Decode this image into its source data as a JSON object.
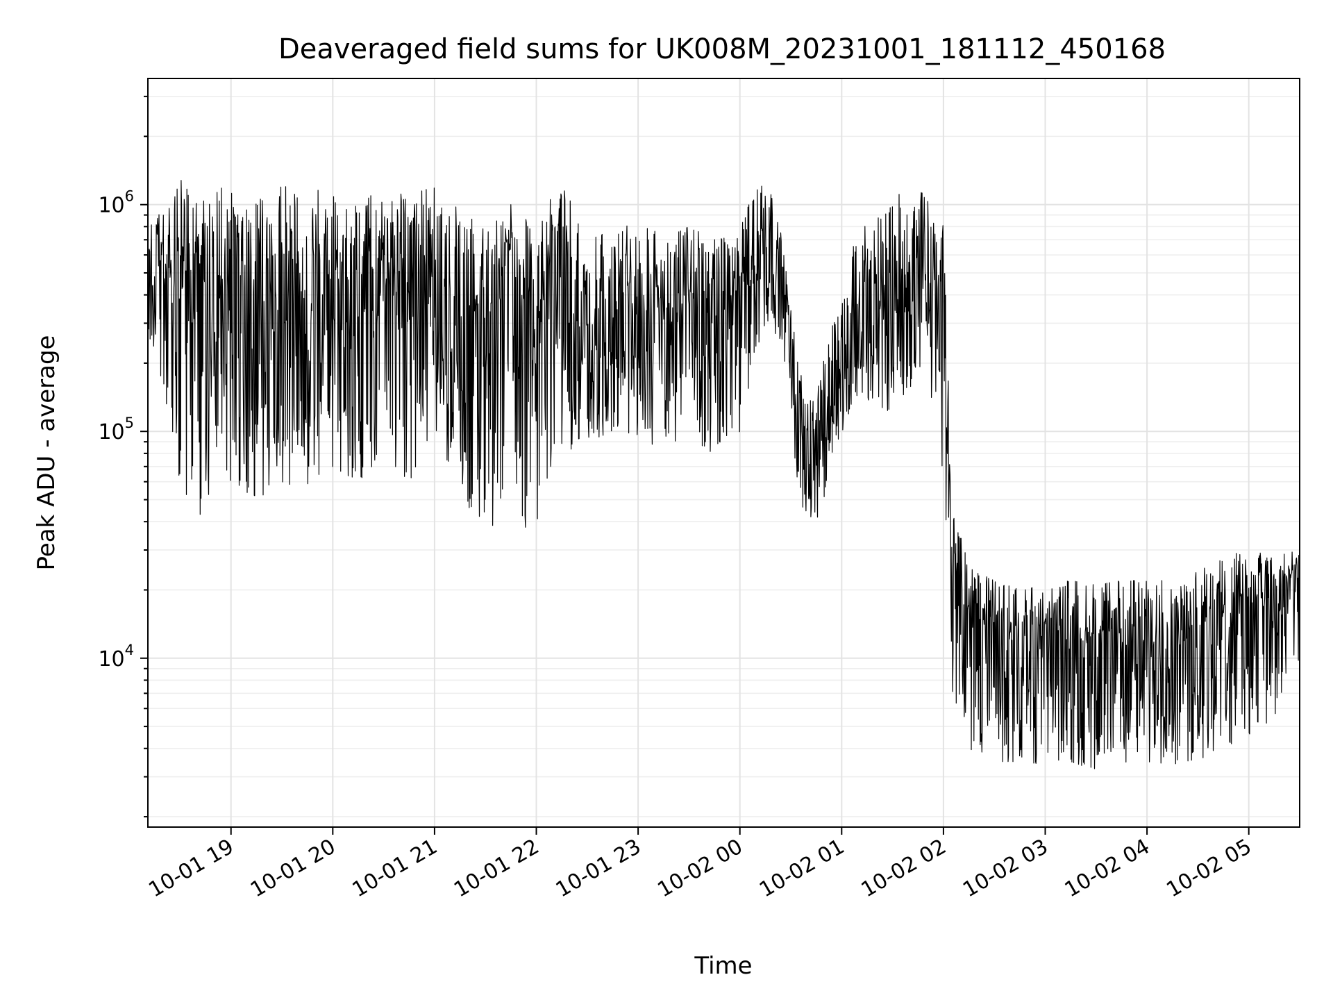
{
  "chart_data": {
    "type": "line",
    "title": "Deaveraged field sums for UK008M_20231001_181112_450168",
    "xlabel": "Time",
    "ylabel": "Peak ADU - average",
    "yscale": "log",
    "ylim": [
      1800,
      3600000
    ],
    "xlim": [
      "2023-10-01 18:11",
      "2023-10-02 05:30"
    ],
    "grid": true,
    "x_ticks": [
      {
        "value": "2023-10-01 19:00",
        "label": "10-01 19"
      },
      {
        "value": "2023-10-01 20:00",
        "label": "10-01 20"
      },
      {
        "value": "2023-10-01 21:00",
        "label": "10-01 21"
      },
      {
        "value": "2023-10-01 22:00",
        "label": "10-01 22"
      },
      {
        "value": "2023-10-01 23:00",
        "label": "10-01 23"
      },
      {
        "value": "2023-10-02 00:00",
        "label": "10-02 00"
      },
      {
        "value": "2023-10-02 01:00",
        "label": "10-02 01"
      },
      {
        "value": "2023-10-02 02:00",
        "label": "10-02 02"
      },
      {
        "value": "2023-10-02 03:00",
        "label": "10-02 03"
      },
      {
        "value": "2023-10-02 04:00",
        "label": "10-02 04"
      },
      {
        "value": "2023-10-02 05:00",
        "label": "10-02 05"
      }
    ],
    "y_ticks": [
      {
        "value": 10000,
        "base": "10",
        "exp": "4"
      },
      {
        "value": 100000,
        "base": "10",
        "exp": "5"
      },
      {
        "value": 1000000,
        "base": "10",
        "exp": "6"
      }
    ],
    "series_color": "#000000",
    "series": [
      {
        "x": [
          "2023-10-01 18:11",
          "2023-10-01 18:20",
          "2023-10-01 18:30",
          "2023-10-01 18:40",
          "2023-10-01 18:50",
          "2023-10-01 19:00",
          "2023-10-01 19:15",
          "2023-10-01 19:30",
          "2023-10-01 19:45",
          "2023-10-01 20:00",
          "2023-10-01 20:15",
          "2023-10-01 20:30",
          "2023-10-01 20:45",
          "2023-10-01 21:00",
          "2023-10-01 21:15",
          "2023-10-01 21:30",
          "2023-10-01 21:45",
          "2023-10-01 22:00",
          "2023-10-01 22:15",
          "2023-10-01 22:30",
          "2023-10-01 22:45",
          "2023-10-01 23:00",
          "2023-10-01 23:15",
          "2023-10-01 23:30",
          "2023-10-01 23:45",
          "2023-10-02 00:00",
          "2023-10-02 00:15",
          "2023-10-02 00:25",
          "2023-10-02 00:35",
          "2023-10-02 00:45",
          "2023-10-02 00:55",
          "2023-10-02 01:10",
          "2023-10-02 01:25",
          "2023-10-02 01:40",
          "2023-10-02 01:50",
          "2023-10-02 02:00",
          "2023-10-02 02:05",
          "2023-10-02 02:15",
          "2023-10-02 02:30",
          "2023-10-02 02:45",
          "2023-10-02 03:00",
          "2023-10-02 03:15",
          "2023-10-02 03:30",
          "2023-10-02 03:45",
          "2023-10-02 04:00",
          "2023-10-02 04:15",
          "2023-10-02 04:30",
          "2023-10-02 04:45",
          "2023-10-02 05:00",
          "2023-10-02 05:15",
          "2023-10-02 05:30"
        ],
        "y": [
          450000,
          550000,
          400000,
          600000,
          300000,
          350000,
          380000,
          300000,
          320000,
          400000,
          350000,
          420000,
          380000,
          450000,
          380000,
          300000,
          400000,
          280000,
          300000,
          260000,
          320000,
          340000,
          300000,
          330000,
          300000,
          330000,
          800000,
          480000,
          110000,
          90000,
          150000,
          280000,
          300000,
          350000,
          450000,
          400000,
          30000,
          15000,
          14000,
          12000,
          12000,
          11500,
          12000,
          12500,
          11000,
          13000,
          13500,
          15000,
          17000,
          16000,
          22000
        ],
        "envelope_low": [
          280000,
          150000,
          60000,
          40000,
          60000,
          60000,
          50000,
          60000,
          55000,
          70000,
          60000,
          80000,
          60000,
          100000,
          50000,
          40000,
          35000,
          40000,
          80000,
          90000,
          100000,
          80000,
          90000,
          90000,
          80000,
          100000,
          300000,
          250000,
          50000,
          35000,
          80000,
          150000,
          120000,
          150000,
          200000,
          60000,
          7000,
          4000,
          3500,
          3500,
          3400,
          3500,
          3200,
          3400,
          3500,
          3400,
          3600,
          3800,
          4500,
          5500,
          8000
        ],
        "envelope_high": [
          900000,
          1000000,
          1300000,
          1000000,
          1100000,
          1300000,
          1100000,
          1200000,
          1200000,
          1100000,
          1000000,
          1200000,
          1100000,
          1200000,
          1000000,
          800000,
          1000000,
          900000,
          1200000,
          800000,
          700000,
          900000,
          700000,
          800000,
          700000,
          800000,
          1500000,
          700000,
          180000,
          150000,
          300000,
          800000,
          1000000,
          1200000,
          1100000,
          800000,
          50000,
          25000,
          22000,
          20000,
          21000,
          22000,
          21000,
          22000,
          22000,
          22000,
          24000,
          28000,
          30000,
          28000,
          30000
        ]
      }
    ]
  }
}
